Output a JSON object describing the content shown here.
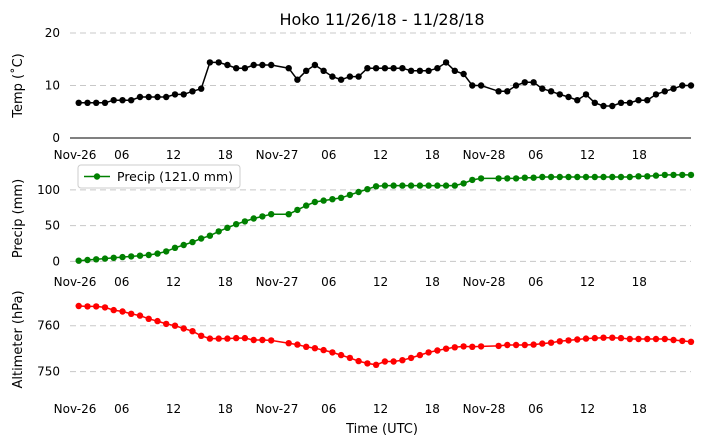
{
  "chart_data": {
    "type": "line",
    "title": "Hoko 11/26/18 - 11/28/18",
    "xlabel": "Time (UTC)",
    "x_start": "2018-11-26T00:00",
    "x_end": "2018-11-28T23:00",
    "x_tick_labels": [
      "Nov-26",
      "06",
      "12",
      "18",
      "Nov-27",
      "06",
      "12",
      "18",
      "Nov-28",
      "06",
      "12",
      "18"
    ],
    "grid": "horizontal dashed",
    "panels": [
      {
        "name": "temp",
        "ylabel": "Temp (˚C)",
        "ylim": [
          0,
          20
        ],
        "yticks": [
          0,
          10,
          20
        ],
        "color": "#000000",
        "series": [
          {
            "x": [
              "2018-11-26T01:00",
              "2018-11-26T02:00",
              "2018-11-26T03:00",
              "2018-11-26T04:00",
              "2018-11-26T05:00",
              "2018-11-26T06:00",
              "2018-11-26T07:00",
              "2018-11-26T08:00",
              "2018-11-26T09:00",
              "2018-11-26T10:00",
              "2018-11-26T11:00",
              "2018-11-26T12:00",
              "2018-11-26T13:00",
              "2018-11-26T14:00",
              "2018-11-26T15:00",
              "2018-11-26T16:00",
              "2018-11-26T17:00",
              "2018-11-26T18:00",
              "2018-11-26T19:00",
              "2018-11-26T20:00",
              "2018-11-26T21:00",
              "2018-11-26T22:00",
              "2018-11-26T23:00",
              "2018-11-27T01:00",
              "2018-11-27T02:00",
              "2018-11-27T03:00",
              "2018-11-27T04:00",
              "2018-11-27T05:00",
              "2018-11-27T06:00",
              "2018-11-27T07:00",
              "2018-11-27T08:00",
              "2018-11-27T09:00",
              "2018-11-27T10:00",
              "2018-11-27T11:00",
              "2018-11-27T12:00",
              "2018-11-27T13:00",
              "2018-11-27T14:00",
              "2018-11-27T15:00",
              "2018-11-27T16:00",
              "2018-11-27T17:00",
              "2018-11-27T18:00",
              "2018-11-27T19:00",
              "2018-11-27T20:00",
              "2018-11-27T21:00",
              "2018-11-27T22:00",
              "2018-11-27T23:00",
              "2018-11-28T01:00",
              "2018-11-28T02:00",
              "2018-11-28T03:00",
              "2018-11-28T04:00",
              "2018-11-28T05:00",
              "2018-11-28T06:00",
              "2018-11-28T07:00",
              "2018-11-28T08:00",
              "2018-11-28T09:00",
              "2018-11-28T10:00",
              "2018-11-28T11:00",
              "2018-11-28T12:00",
              "2018-11-28T13:00",
              "2018-11-28T14:00",
              "2018-11-28T15:00",
              "2018-11-28T16:00",
              "2018-11-28T17:00",
              "2018-11-28T18:00",
              "2018-11-28T19:00",
              "2018-11-28T20:00",
              "2018-11-28T21:00",
              "2018-11-28T22:00",
              "2018-11-28T23:00"
            ],
            "y": [
              6.7,
              6.7,
              6.7,
              6.7,
              7.2,
              7.2,
              7.2,
              7.8,
              7.8,
              7.8,
              7.8,
              8.3,
              8.3,
              8.9,
              9.4,
              14.4,
              14.4,
              13.9,
              13.3,
              13.3,
              13.9,
              13.9,
              13.9,
              13.3,
              11.1,
              12.8,
              13.9,
              12.8,
              11.7,
              11.1,
              11.7,
              11.7,
              13.3,
              13.3,
              13.3,
              13.3,
              13.3,
              12.8,
              12.8,
              12.8,
              13.3,
              14.4,
              12.8,
              12.2,
              10.0,
              10.0,
              8.9,
              8.9,
              10.0,
              10.6,
              10.6,
              9.4,
              8.9,
              8.3,
              7.8,
              7.2,
              8.3,
              6.7,
              6.1,
              6.1,
              6.7,
              6.7,
              7.2,
              7.2,
              8.3,
              8.9,
              9.4,
              10.0,
              10.0
            ]
          }
        ]
      },
      {
        "name": "precip",
        "ylabel": "Precip (mm)",
        "ylim": [
          -5,
          125
        ],
        "yticks": [
          0,
          50,
          100
        ],
        "color": "#008000",
        "legend": "Precip (121.0 mm)",
        "legend_loc": "upper-left",
        "series": [
          {
            "x": [
              "2018-11-26T01:00",
              "2018-11-26T02:00",
              "2018-11-26T03:00",
              "2018-11-26T04:00",
              "2018-11-26T05:00",
              "2018-11-26T06:00",
              "2018-11-26T07:00",
              "2018-11-26T08:00",
              "2018-11-26T09:00",
              "2018-11-26T10:00",
              "2018-11-26T11:00",
              "2018-11-26T12:00",
              "2018-11-26T13:00",
              "2018-11-26T14:00",
              "2018-11-26T15:00",
              "2018-11-26T16:00",
              "2018-11-26T17:00",
              "2018-11-26T18:00",
              "2018-11-26T19:00",
              "2018-11-26T20:00",
              "2018-11-26T21:00",
              "2018-11-26T22:00",
              "2018-11-26T23:00",
              "2018-11-27T01:00",
              "2018-11-27T02:00",
              "2018-11-27T03:00",
              "2018-11-27T04:00",
              "2018-11-27T05:00",
              "2018-11-27T06:00",
              "2018-11-27T07:00",
              "2018-11-27T08:00",
              "2018-11-27T09:00",
              "2018-11-27T10:00",
              "2018-11-27T11:00",
              "2018-11-27T12:00",
              "2018-11-27T13:00",
              "2018-11-27T14:00",
              "2018-11-27T15:00",
              "2018-11-27T16:00",
              "2018-11-27T17:00",
              "2018-11-27T18:00",
              "2018-11-27T19:00",
              "2018-11-27T20:00",
              "2018-11-27T21:00",
              "2018-11-27T22:00",
              "2018-11-27T23:00",
              "2018-11-28T01:00",
              "2018-11-28T02:00",
              "2018-11-28T03:00",
              "2018-11-28T04:00",
              "2018-11-28T05:00",
              "2018-11-28T06:00",
              "2018-11-28T07:00",
              "2018-11-28T08:00",
              "2018-11-28T09:00",
              "2018-11-28T10:00",
              "2018-11-28T11:00",
              "2018-11-28T12:00",
              "2018-11-28T13:00",
              "2018-11-28T14:00",
              "2018-11-28T15:00",
              "2018-11-28T16:00",
              "2018-11-28T17:00",
              "2018-11-28T18:00",
              "2018-11-28T19:00",
              "2018-11-28T20:00",
              "2018-11-28T21:00",
              "2018-11-28T22:00",
              "2018-11-28T23:00"
            ],
            "y": [
              1,
              2,
              3,
              4,
              5,
              6,
              7,
              8,
              9,
              11,
              14,
              19,
              23,
              27,
              32,
              36,
              42,
              47,
              52,
              56,
              60,
              63,
              66,
              66,
              72,
              78,
              83,
              85,
              87,
              89,
              93,
              97,
              101,
              105,
              106,
              106,
              106,
              106,
              106,
              106,
              106,
              106,
              106,
              109,
              114,
              116,
              116,
              116,
              116,
              117,
              117,
              118,
              118,
              118,
              118,
              118,
              118,
              118,
              118,
              118,
              118,
              118,
              119,
              119,
              120,
              121,
              121,
              121,
              121
            ]
          }
        ]
      },
      {
        "name": "altimeter",
        "ylabel": "Altimeter (hPa)",
        "ylim": [
          746,
          768
        ],
        "yticks": [
          750,
          760
        ],
        "color": "#ff0000",
        "series": [
          {
            "x": [
              "2018-11-26T01:00",
              "2018-11-26T02:00",
              "2018-11-26T03:00",
              "2018-11-26T04:00",
              "2018-11-26T05:00",
              "2018-11-26T06:00",
              "2018-11-26T07:00",
              "2018-11-26T08:00",
              "2018-11-26T09:00",
              "2018-11-26T10:00",
              "2018-11-26T11:00",
              "2018-11-26T12:00",
              "2018-11-26T13:00",
              "2018-11-26T14:00",
              "2018-11-26T15:00",
              "2018-11-26T16:00",
              "2018-11-26T17:00",
              "2018-11-26T18:00",
              "2018-11-26T19:00",
              "2018-11-26T20:00",
              "2018-11-26T21:00",
              "2018-11-26T22:00",
              "2018-11-26T23:00",
              "2018-11-27T01:00",
              "2018-11-27T02:00",
              "2018-11-27T03:00",
              "2018-11-27T04:00",
              "2018-11-27T05:00",
              "2018-11-27T06:00",
              "2018-11-27T07:00",
              "2018-11-27T08:00",
              "2018-11-27T09:00",
              "2018-11-27T10:00",
              "2018-11-27T11:00",
              "2018-11-27T12:00",
              "2018-11-27T13:00",
              "2018-11-27T14:00",
              "2018-11-27T15:00",
              "2018-11-27T16:00",
              "2018-11-27T17:00",
              "2018-11-27T18:00",
              "2018-11-27T19:00",
              "2018-11-27T20:00",
              "2018-11-27T21:00",
              "2018-11-27T22:00",
              "2018-11-27T23:00",
              "2018-11-28T01:00",
              "2018-11-28T02:00",
              "2018-11-28T03:00",
              "2018-11-28T04:00",
              "2018-11-28T05:00",
              "2018-11-28T06:00",
              "2018-11-28T07:00",
              "2018-11-28T08:00",
              "2018-11-28T09:00",
              "2018-11-28T10:00",
              "2018-11-28T11:00",
              "2018-11-28T12:00",
              "2018-11-28T13:00",
              "2018-11-28T14:00",
              "2018-11-28T15:00",
              "2018-11-28T16:00",
              "2018-11-28T17:00",
              "2018-11-28T18:00",
              "2018-11-28T19:00",
              "2018-11-28T20:00",
              "2018-11-28T21:00",
              "2018-11-28T22:00",
              "2018-11-28T23:00"
            ],
            "y": [
              764.3,
              764.2,
              764.2,
              764.0,
              763.4,
              763.1,
              762.6,
              762.2,
              761.5,
              761.0,
              760.4,
              760.0,
              759.4,
              758.8,
              757.8,
              757.2,
              757.2,
              757.2,
              757.3,
              757.3,
              756.9,
              756.9,
              756.8,
              756.2,
              755.9,
              755.4,
              755.1,
              754.7,
              754.2,
              753.6,
              753.0,
              752.3,
              751.8,
              751.5,
              752.2,
              752.2,
              752.5,
              753.0,
              753.6,
              754.2,
              754.6,
              755.0,
              755.3,
              755.5,
              755.4,
              755.5,
              755.6,
              755.8,
              755.8,
              755.8,
              755.9,
              756.1,
              756.3,
              756.6,
              756.8,
              757.0,
              757.2,
              757.3,
              757.4,
              757.4,
              757.3,
              757.1,
              757.1,
              757.1,
              757.1,
              757.1,
              756.9,
              756.7,
              756.5
            ]
          }
        ]
      }
    ]
  }
}
